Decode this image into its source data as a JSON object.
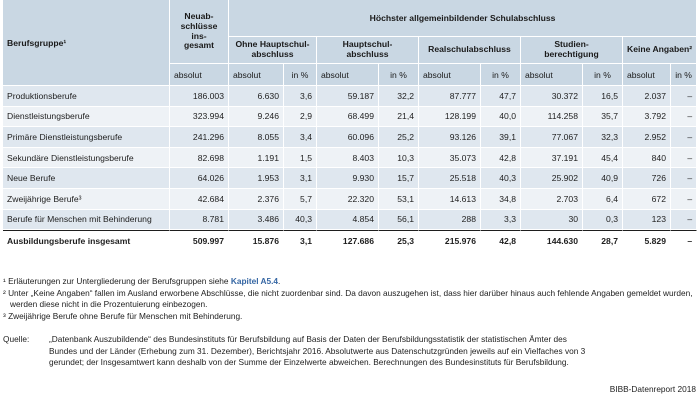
{
  "header": {
    "berufsgruppe": "Berufsgruppe¹",
    "neuabschluesse": [
      "Neuab-",
      "schlüsse",
      "ins-",
      "gesamt"
    ],
    "group_title": "Höchster allgemeinbildender Schulabschluss",
    "categories": [
      [
        "Ohne Hauptschul-",
        "abschluss"
      ],
      [
        "Hauptschul-",
        "abschluss"
      ],
      [
        "Realschulabschluss"
      ],
      [
        "Studien-",
        "berechtigung"
      ],
      [
        "Keine Angaben²"
      ]
    ],
    "sub_absolut": "absolut",
    "sub_pct": "in %"
  },
  "rows": [
    {
      "label": "Produktionsberufe",
      "total": "186.003",
      "cells": [
        "6.630",
        "3,6",
        "59.187",
        "32,2",
        "87.777",
        "47,7",
        "30.372",
        "16,5",
        "2.037",
        "–"
      ]
    },
    {
      "label": "Dienstleistungsberufe",
      "total": "323.994",
      "cells": [
        "9.246",
        "2,9",
        "68.499",
        "21,4",
        "128.199",
        "40,0",
        "114.258",
        "35,7",
        "3.792",
        "–"
      ]
    },
    {
      "label": "Primäre Dienstleistungsberufe",
      "total": "241.296",
      "cells": [
        "8.055",
        "3,4",
        "60.096",
        "25,2",
        "93.126",
        "39,1",
        "77.067",
        "32,3",
        "2.952",
        "–"
      ]
    },
    {
      "label": "Sekundäre Dienstleistungsberufe",
      "total": "82.698",
      "cells": [
        "1.191",
        "1,5",
        "8.403",
        "10,3",
        "35.073",
        "42,8",
        "37.191",
        "45,4",
        "840",
        "–"
      ]
    },
    {
      "label": "Neue Berufe",
      "total": "64.026",
      "cells": [
        "1.953",
        "3,1",
        "9.930",
        "15,7",
        "25.518",
        "40,3",
        "25.902",
        "40,9",
        "726",
        "–"
      ]
    },
    {
      "label": "Zweijährige Berufe³",
      "total": "42.684",
      "cells": [
        "2.376",
        "5,7",
        "22.320",
        "53,1",
        "14.613",
        "34,8",
        "2.703",
        "6,4",
        "672",
        "–"
      ]
    },
    {
      "label": "Berufe für Menschen mit Behinderung",
      "total": "8.781",
      "cells": [
        "3.486",
        "40,3",
        "4.854",
        "56,1",
        "288",
        "3,3",
        "30",
        "0,3",
        "123",
        "–"
      ]
    }
  ],
  "total_row": {
    "label": "Ausbildungsberufe insgesamt",
    "total": "509.997",
    "cells": [
      "15.876",
      "3,1",
      "127.686",
      "25,3",
      "215.976",
      "42,8",
      "144.630",
      "28,7",
      "5.829",
      "–"
    ]
  },
  "notes": {
    "n1_text": "¹ Erläuterungen zur Untergliederung der Berufsgruppen siehe ",
    "n1_link": "Kapitel A5.4",
    "n1_end": ".",
    "n2": "² Unter „Keine Angaben“ fallen im Ausland erworbene Abschlüsse, die nicht zuordenbar sind. Da davon auszugehen ist, dass hier darüber hinaus auch fehlende Angaben gemeldet wurden, werden diese nicht in die Prozentuierung einbezogen.",
    "n3": "³ Zweijährige Berufe ohne Berufe für Menschen mit Behinderung."
  },
  "source": {
    "label": "Quelle:",
    "text": "„Datenbank Auszubildende“ des Bundesinstituts für Berufsbildung auf Basis der Daten der Berufsbildungsstatistik der statistischen Ämter des Bundes und der Länder (Erhebung zum 31. Dezember), Berichtsjahr 2016. Absolutwerte aus Datenschutzgründen jeweils auf ein Vielfaches von 3 gerundet; der Insgesamtwert kann deshalb von der Summe der Einzelwerte abweichen. Berechnungen des Bundesinstituts für Berufsbildung."
  },
  "footer": "BIBB-Datenreport 2018"
}
